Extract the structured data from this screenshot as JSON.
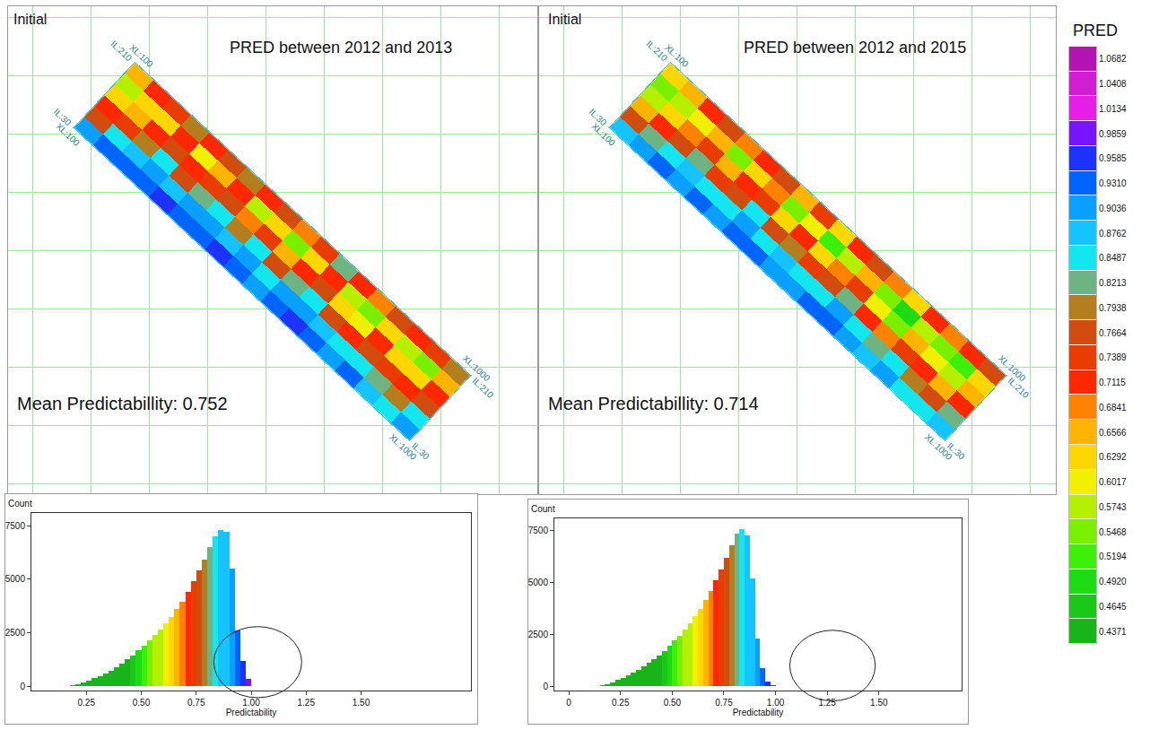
{
  "chart_data": [
    {
      "type": "heatmap",
      "label": "Initial",
      "title": "PRED between 2012 and 2013",
      "annotation": "Mean Predictabillity: 0.752",
      "x": [
        125,
        175,
        225,
        275,
        325,
        375,
        425,
        475,
        525,
        575,
        625,
        675,
        725,
        775,
        825,
        875,
        925,
        975
      ],
      "y": [
        45,
        75,
        105,
        135,
        165,
        195
      ],
      "z": [
        [
          0.9,
          0.92,
          0.94,
          0.93,
          0.95,
          0.92,
          0.94,
          0.96,
          0.93,
          0.91,
          0.94,
          0.95,
          0.92,
          0.9,
          0.93,
          0.88,
          0.86,
          0.9
        ],
        [
          0.78,
          0.84,
          0.88,
          0.9,
          0.87,
          0.89,
          0.91,
          0.88,
          0.9,
          0.86,
          0.89,
          0.91,
          0.87,
          0.84,
          0.86,
          0.82,
          0.8,
          0.85
        ],
        [
          0.7,
          0.74,
          0.8,
          0.84,
          0.78,
          0.82,
          0.86,
          0.8,
          0.84,
          0.78,
          0.82,
          0.86,
          0.76,
          0.72,
          0.78,
          0.74,
          0.7,
          0.76
        ],
        [
          0.62,
          0.66,
          0.72,
          0.76,
          0.7,
          0.74,
          0.78,
          0.68,
          0.74,
          0.66,
          0.72,
          0.78,
          0.64,
          0.6,
          0.7,
          0.64,
          0.62,
          0.7
        ],
        [
          0.58,
          0.62,
          0.64,
          0.7,
          0.6,
          0.66,
          0.72,
          0.58,
          0.64,
          0.56,
          0.62,
          0.7,
          0.58,
          0.54,
          0.62,
          0.58,
          0.56,
          0.66
        ],
        [
          0.66,
          0.7,
          0.74,
          0.8,
          0.72,
          0.76,
          0.8,
          0.7,
          0.78,
          0.68,
          0.74,
          0.82,
          0.72,
          0.68,
          0.76,
          0.72,
          0.74,
          0.8
        ]
      ],
      "xlim": [
        100,
        1000
      ],
      "ylim": [
        30,
        210
      ],
      "tick_labels": false,
      "grid": true,
      "corners": [
        {
          "xl": 100,
          "il": 210,
          "il_label": "IL:210",
          "xl_label": "XL:100"
        },
        {
          "xl": 100,
          "il": 30,
          "il_label": "IL:30",
          "xl_label": "XL:100"
        },
        {
          "xl": 1000,
          "il": 210,
          "il_label": "IL:210",
          "xl_label": "XL:1000"
        },
        {
          "xl": 1000,
          "il": 30,
          "il_label": "IL:30",
          "xl_label": "XL:1000"
        }
      ]
    },
    {
      "type": "heatmap",
      "label": "Initial",
      "title": "PRED between 2012 and 2015",
      "annotation": "Mean Predictabillity: 0.714",
      "x": [
        125,
        175,
        225,
        275,
        325,
        375,
        425,
        475,
        525,
        575,
        625,
        675,
        725,
        775,
        825,
        875,
        925,
        975
      ],
      "y": [
        45,
        75,
        105,
        135,
        165,
        195
      ],
      "z": [
        [
          0.88,
          0.9,
          0.92,
          0.91,
          0.93,
          0.9,
          0.92,
          0.94,
          0.91,
          0.89,
          0.92,
          0.93,
          0.9,
          0.88,
          0.91,
          0.86,
          0.84,
          0.88
        ],
        [
          0.76,
          0.82,
          0.86,
          0.88,
          0.85,
          0.86,
          0.89,
          0.85,
          0.88,
          0.84,
          0.86,
          0.89,
          0.84,
          0.82,
          0.84,
          0.8,
          0.78,
          0.83
        ],
        [
          0.66,
          0.7,
          0.76,
          0.82,
          0.74,
          0.78,
          0.84,
          0.76,
          0.8,
          0.74,
          0.78,
          0.82,
          0.72,
          0.68,
          0.74,
          0.7,
          0.66,
          0.72
        ],
        [
          0.58,
          0.62,
          0.68,
          0.74,
          0.66,
          0.7,
          0.74,
          0.64,
          0.7,
          0.62,
          0.68,
          0.74,
          0.6,
          0.56,
          0.66,
          0.6,
          0.58,
          0.66
        ],
        [
          0.54,
          0.58,
          0.6,
          0.66,
          0.56,
          0.62,
          0.68,
          0.54,
          0.6,
          0.52,
          0.58,
          0.66,
          0.54,
          0.5,
          0.58,
          0.54,
          0.52,
          0.62
        ],
        [
          0.62,
          0.66,
          0.7,
          0.76,
          0.68,
          0.72,
          0.76,
          0.66,
          0.74,
          0.64,
          0.7,
          0.78,
          0.68,
          0.64,
          0.72,
          0.68,
          0.7,
          0.76
        ]
      ],
      "xlim": [
        100,
        1000
      ],
      "ylim": [
        30,
        210
      ],
      "tick_labels": false,
      "grid": true,
      "corners": [
        {
          "xl": 100,
          "il": 210,
          "il_label": "IL:210",
          "xl_label": "XL:100"
        },
        {
          "xl": 100,
          "il": 30,
          "il_label": "IL:30",
          "xl_label": "XL:100"
        },
        {
          "xl": 1000,
          "il": 210,
          "il_label": "IL:210",
          "xl_label": "XL:1000"
        },
        {
          "xl": 1000,
          "il": 30,
          "il_label": "IL:30",
          "xl_label": "XL:1000"
        }
      ]
    },
    {
      "type": "histogram",
      "xlabel": "Predictability",
      "ylabel": "Count",
      "bins": [
        0.175,
        0.2,
        0.225,
        0.25,
        0.275,
        0.3,
        0.325,
        0.35,
        0.375,
        0.4,
        0.425,
        0.45,
        0.475,
        0.5,
        0.525,
        0.55,
        0.575,
        0.6,
        0.625,
        0.65,
        0.675,
        0.7,
        0.725,
        0.75,
        0.775,
        0.8,
        0.825,
        0.85,
        0.875,
        0.9,
        0.925,
        0.95,
        0.975,
        1.0
      ],
      "counts": [
        50,
        100,
        180,
        280,
        380,
        480,
        600,
        730,
        880,
        1050,
        1250,
        1450,
        1680,
        1900,
        2150,
        2400,
        2650,
        2950,
        3250,
        3600,
        3950,
        4400,
        4900,
        5400,
        5900,
        6500,
        7000,
        7300,
        7200,
        5500,
        2600,
        1200,
        350
      ],
      "xlim": [
        0,
        2.0
      ],
      "xticks": [
        0.25,
        {
          "value": 0.5,
          "label": "0.50"
        },
        0.75,
        {
          "value": 1.0,
          "label": "1.00"
        },
        1.25,
        {
          "value": 1.5,
          "label": "1.50"
        }
      ],
      "ylim": [
        -200,
        8100
      ],
      "yticks": [
        0,
        2500,
        5000,
        7500
      ]
    },
    {
      "type": "histogram",
      "xlabel": "Predictability",
      "ylabel": "Count",
      "bins": [
        0.15,
        0.175,
        0.2,
        0.225,
        0.25,
        0.275,
        0.3,
        0.325,
        0.35,
        0.375,
        0.4,
        0.425,
        0.45,
        0.475,
        0.5,
        0.525,
        0.55,
        0.575,
        0.6,
        0.625,
        0.65,
        0.675,
        0.7,
        0.725,
        0.75,
        0.775,
        0.8,
        0.825,
        0.85,
        0.875,
        0.9,
        0.925,
        0.95,
        0.975,
        1.0
      ],
      "counts": [
        60,
        120,
        200,
        300,
        400,
        520,
        650,
        800,
        950,
        1120,
        1300,
        1500,
        1720,
        1950,
        2200,
        2450,
        2750,
        3050,
        3400,
        3750,
        4150,
        4600,
        5100,
        5650,
        6200,
        6800,
        7350,
        7600,
        7300,
        5200,
        2300,
        900,
        250,
        50
      ],
      "xlim": [
        -0.07,
        1.9
      ],
      "xticks": [
        0,
        0.25,
        {
          "value": 0.5,
          "label": "0.50"
        },
        0.75,
        {
          "value": 1.0,
          "label": "1.00"
        },
        1.25,
        {
          "value": 1.5,
          "label": "1.50"
        }
      ],
      "ylim": [
        -200,
        8100
      ],
      "yticks": [
        0,
        2500,
        5000,
        7500
      ]
    }
  ],
  "colorbar": {
    "title": "PRED",
    "ylim": [
      0.4234,
      1.0819
    ],
    "ticks": [
      0.4371,
      0.4645,
      {
        "value": 0.492,
        "label": "0.4920"
      },
      0.5194,
      0.5468,
      0.5743,
      0.6017,
      0.6292,
      0.6566,
      0.6841,
      0.7115,
      0.7389,
      0.7664,
      0.7938,
      0.8213,
      0.8487,
      0.8762,
      0.9036,
      {
        "value": 0.931,
        "label": "0.9310"
      },
      0.9585,
      0.9859,
      1.0134,
      1.0408,
      1.0682
    ],
    "colors": [
      "#19b419",
      "#19c819",
      "#1edc14",
      "#3cf00a",
      "#78f000",
      "#b4f000",
      "#f0f000",
      "#ffd700",
      "#ffb400",
      "#ff8200",
      "#ff2800",
      "#eb3c00",
      "#d24b0f",
      "#b47d1e",
      "#6eb482",
      "#14e6f0",
      "#14c3ff",
      "#0aa0ff",
      "#0064ff",
      "#1e32ff",
      "#7814ff",
      "#e61ee6",
      "#d21ed2",
      "#b414b4"
    ]
  }
}
